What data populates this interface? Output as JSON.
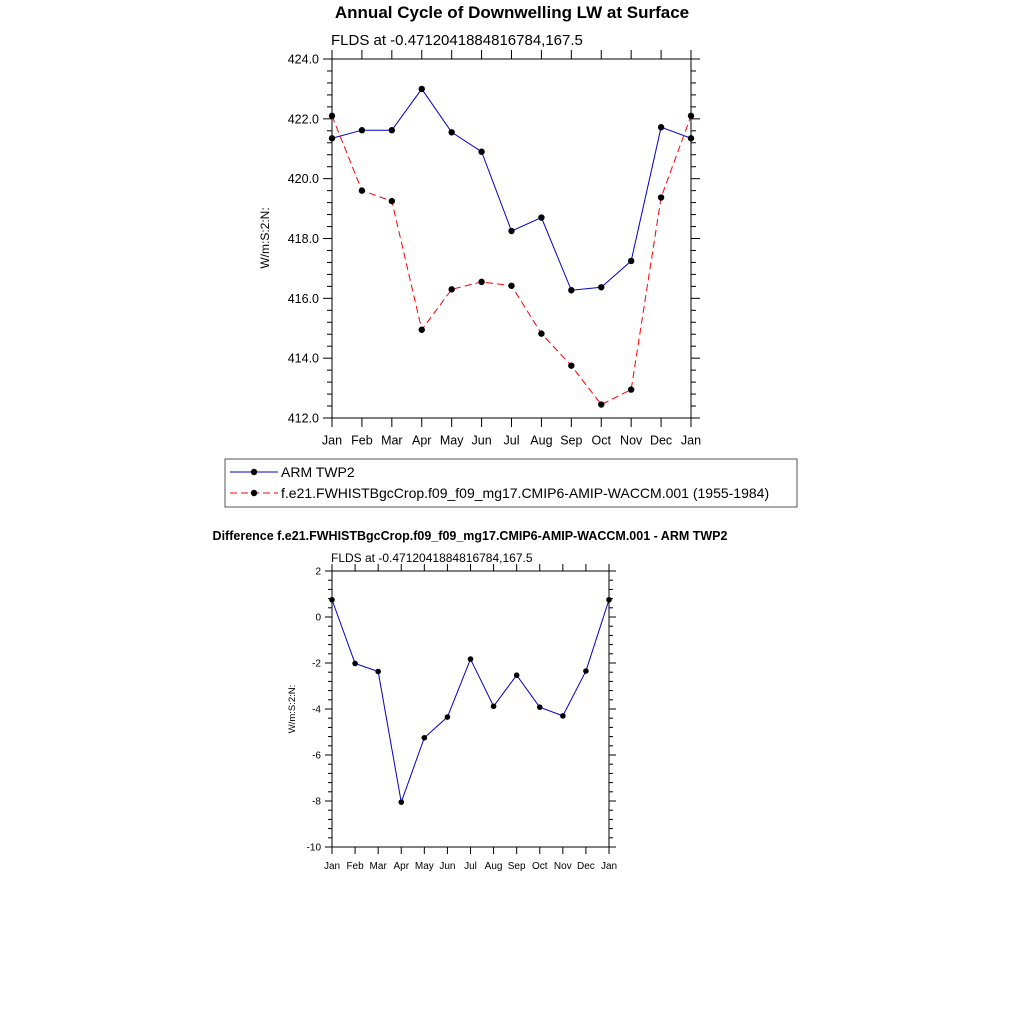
{
  "chart_data": [
    {
      "type": "line",
      "title": "Annual Cycle of Downwelling LW at Surface",
      "subtitle": "FLDS at -0.4712041884816784,167.5",
      "ylabel": "W/m:S:2:N:",
      "xlabel": "",
      "ylim": [
        412.0,
        424.0
      ],
      "yticks": [
        "412.0",
        "414.0",
        "416.0",
        "418.0",
        "420.0",
        "422.0",
        "424.0"
      ],
      "categories": [
        "Jan",
        "Feb",
        "Mar",
        "Apr",
        "May",
        "Jun",
        "Jul",
        "Aug",
        "Sep",
        "Oct",
        "Nov",
        "Dec",
        "Jan"
      ],
      "series": [
        {
          "name": "ARM TWP2",
          "color": "#0000cc",
          "dash": "solid",
          "values": [
            421.35,
            421.62,
            421.62,
            423.0,
            421.55,
            420.9,
            418.25,
            418.7,
            416.27,
            416.37,
            417.25,
            421.72,
            421.35
          ]
        },
        {
          "name": "f.e21.FWHISTBgcCrop.f09_f09_mg17.CMIP6-AMIP-WACCM.001 (1955-1984)",
          "color": "#ff0000",
          "dash": "dashed",
          "values": [
            422.1,
            419.6,
            419.25,
            414.95,
            416.3,
            416.55,
            416.42,
            414.82,
            413.75,
            412.45,
            412.95,
            419.37,
            422.1
          ]
        }
      ],
      "legend": "bottom"
    },
    {
      "type": "line",
      "title": "Difference f.e21.FWHISTBgcCrop.f09_f09_mg17.CMIP6-AMIP-WACCM.001 - ARM TWP2",
      "subtitle": "FLDS at -0.4712041884816784,167.5",
      "ylabel": "W/m:S:2:N:",
      "xlabel": "",
      "ylim": [
        -10,
        2
      ],
      "yticks": [
        "-10",
        "-8",
        "-6",
        "-4",
        "-2",
        "0",
        "2"
      ],
      "categories": [
        "Jan",
        "Feb",
        "Mar",
        "Apr",
        "May",
        "Jun",
        "Jul",
        "Aug",
        "Sep",
        "Oct",
        "Nov",
        "Dec",
        "Jan"
      ],
      "series": [
        {
          "name": "Difference",
          "color": "#0000cc",
          "dash": "solid",
          "values": [
            0.75,
            -2.02,
            -2.37,
            -8.05,
            -5.25,
            -4.35,
            -1.83,
            -3.88,
            -2.53,
            -3.92,
            -4.3,
            -2.35,
            0.75
          ]
        }
      ]
    }
  ]
}
